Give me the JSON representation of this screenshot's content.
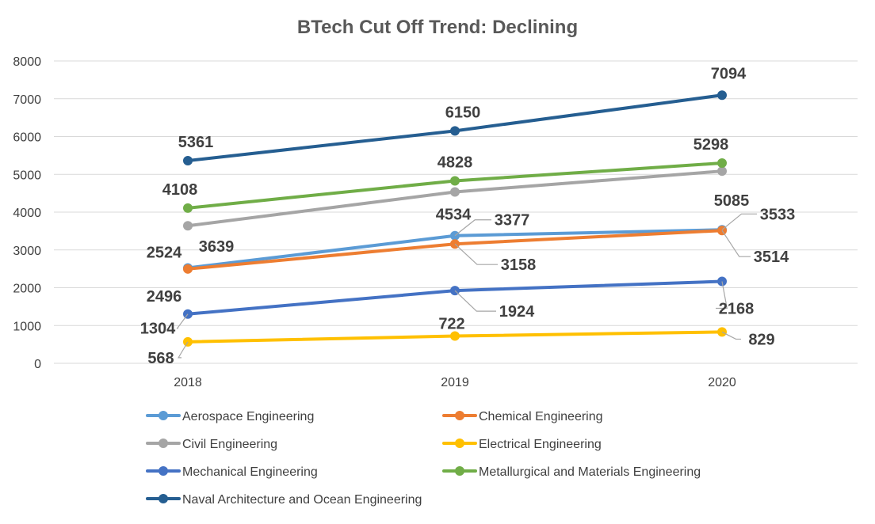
{
  "chart_data": {
    "type": "line",
    "title": "BTech Cut Off Trend: Declining",
    "xlabel": "",
    "ylabel": "",
    "categories": [
      "2018",
      "2019",
      "2020"
    ],
    "ylim": [
      0,
      8000
    ],
    "yticks": [
      "0",
      "1000",
      "2000",
      "3000",
      "4000",
      "5000",
      "6000",
      "7000",
      "8000"
    ],
    "grid": true,
    "legend_position": "bottom",
    "series": [
      {
        "name": "Aerospace Engineering",
        "values": [
          2524,
          3377,
          3533
        ],
        "color": "#5B9BD5"
      },
      {
        "name": "Chemical Engineering",
        "values": [
          2496,
          3158,
          3514
        ],
        "color": "#ED7D31"
      },
      {
        "name": "Civil Engineering",
        "values": [
          3639,
          4534,
          5085
        ],
        "color": "#A5A5A5"
      },
      {
        "name": "Electrical Engineering",
        "values": [
          568,
          722,
          829
        ],
        "color": "#FFC000"
      },
      {
        "name": "Mechanical Engineering",
        "values": [
          1304,
          1924,
          2168
        ],
        "color": "#4472C4"
      },
      {
        "name": "Metallurgical and Materials Engineering",
        "values": [
          4108,
          4828,
          5298
        ],
        "color": "#70AD47"
      },
      {
        "name": "Naval Architecture and Ocean Engineering",
        "values": [
          5361,
          6150,
          7094
        ],
        "color": "#255E91"
      }
    ]
  }
}
